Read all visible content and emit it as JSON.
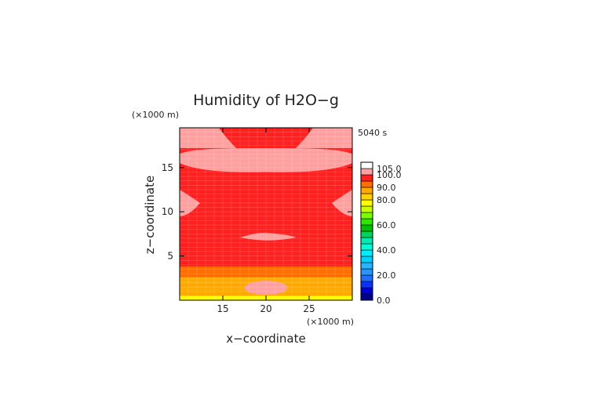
{
  "chart_data": {
    "type": "heatmap",
    "title": "Humidity of H2O−g",
    "xlabel": "x−coordinate",
    "ylabel": "z−coordinate",
    "x_unit": "(×1000 m)",
    "y_unit": "(×1000 m)",
    "time_label": "5040 s",
    "xlim": [
      10,
      30
    ],
    "ylim": [
      0,
      19.5
    ],
    "x_ticks": [
      15,
      20,
      25
    ],
    "y_ticks": [
      5,
      10,
      15
    ],
    "grid": true,
    "background_value": 97,
    "fill_regions": [
      {
        "region": "bottom band",
        "x_range": [
          10,
          30
        ],
        "z_range": [
          0,
          0.5
        ],
        "value": 77
      },
      {
        "region": "lower band",
        "x_range": [
          10,
          30
        ],
        "z_range": [
          0.5,
          1.6
        ],
        "value": 85
      },
      {
        "region": "lower band",
        "x_range": [
          10,
          30
        ],
        "z_range": [
          1.6,
          2.6
        ],
        "value": 88
      },
      {
        "region": "lower band",
        "x_range": [
          10,
          30
        ],
        "z_range": [
          2.6,
          3.8
        ],
        "value": 91
      },
      {
        "region": "central patch",
        "x_range": [
          17.5,
          22.5
        ],
        "z_range": [
          0.6,
          2.2
        ],
        "value": 100
      },
      {
        "region": "central core",
        "x_range": [
          18.8,
          21.2
        ],
        "z_range": [
          0.8,
          2.0
        ],
        "value": 102
      },
      {
        "region": "upper band",
        "x_range": [
          10,
          30
        ],
        "z_range": [
          14.5,
          17.2
        ],
        "value": 102
      },
      {
        "region": "top corners",
        "x_range": [
          10,
          30
        ],
        "z_range": [
          17.2,
          19.5
        ],
        "value": 102
      },
      {
        "region": "side lobes",
        "x_range": [
          10,
          30
        ],
        "z_range": [
          9.5,
          12.5
        ],
        "value": 102
      },
      {
        "region": "mid patch",
        "x_range": [
          17,
          23.5
        ],
        "z_range": [
          6.6,
          7.6
        ],
        "value": 102
      }
    ],
    "colorbar": {
      "ticks": [
        "105.0",
        "100.0",
        "90.0",
        "80.0",
        "60.0",
        "40.0",
        "20.0",
        "0.0"
      ],
      "levels": [
        {
          "lo": 0,
          "hi": 5,
          "color": "#00008c"
        },
        {
          "lo": 5,
          "hi": 10,
          "color": "#0000d0"
        },
        {
          "lo": 10,
          "hi": 15,
          "color": "#0a32ff"
        },
        {
          "lo": 15,
          "hi": 20,
          "color": "#1e6eff"
        },
        {
          "lo": 20,
          "hi": 25,
          "color": "#2896ff"
        },
        {
          "lo": 25,
          "hi": 30,
          "color": "#28b4ff"
        },
        {
          "lo": 30,
          "hi": 35,
          "color": "#00d2ff"
        },
        {
          "lo": 35,
          "hi": 40,
          "color": "#00ecff"
        },
        {
          "lo": 40,
          "hi": 45,
          "color": "#00ffd8"
        },
        {
          "lo": 45,
          "hi": 50,
          "color": "#00ecb4"
        },
        {
          "lo": 50,
          "hi": 55,
          "color": "#00d25a"
        },
        {
          "lo": 55,
          "hi": 60,
          "color": "#00be00"
        },
        {
          "lo": 60,
          "hi": 65,
          "color": "#2ee600"
        },
        {
          "lo": 65,
          "hi": 70,
          "color": "#78ff00"
        },
        {
          "lo": 70,
          "hi": 75,
          "color": "#c8ff00"
        },
        {
          "lo": 75,
          "hi": 80,
          "color": "#ffff00"
        },
        {
          "lo": 80,
          "hi": 85,
          "color": "#ffd200"
        },
        {
          "lo": 85,
          "hi": 90,
          "color": "#ffaa00"
        },
        {
          "lo": 90,
          "hi": 95,
          "color": "#ff6e00"
        },
        {
          "lo": 95,
          "hi": 100,
          "color": "#ff2020"
        },
        {
          "lo": 100,
          "hi": 105,
          "color": "#ffa0a0"
        },
        {
          "lo": 105,
          "hi": 110,
          "color": "#ffffff"
        }
      ]
    }
  }
}
